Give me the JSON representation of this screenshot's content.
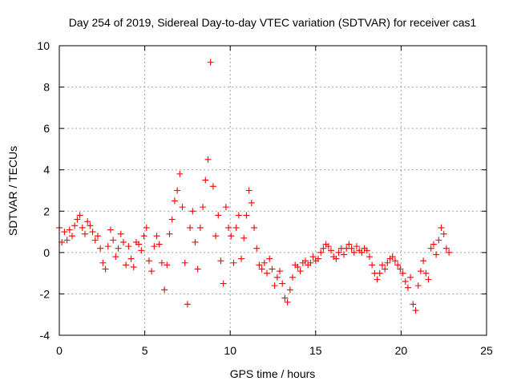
{
  "colors": {
    "marker": "#ff0000",
    "grid": "#a0a0a0",
    "axis": "#000000",
    "background": "#ffffff"
  },
  "chart_data": {
    "type": "scatter",
    "title": "Day 254 of 2019, Sidereal Day-to-day VTEC variation (SDTVAR) for receiver cas1",
    "xlabel": "GPS time / hours",
    "ylabel": "SDTVAR / TECUs",
    "xlim": [
      0,
      25
    ],
    "ylim": [
      -4,
      10
    ],
    "xticks": [
      0,
      5,
      10,
      15,
      20,
      25
    ],
    "xtick_labels": [
      "0",
      "5",
      "10",
      "15",
      "20",
      "25"
    ],
    "yticks": [
      -4,
      -2,
      0,
      2,
      4,
      6,
      8,
      10
    ],
    "ytick_labels": [
      "-4",
      "-2",
      "0",
      "2",
      "4",
      "6",
      "8",
      "10"
    ],
    "grid": true,
    "marker": "+",
    "series": [
      {
        "name": "cas1",
        "x": [
          0.0,
          0.15,
          0.3,
          0.45,
          0.6,
          0.75,
          0.9,
          1.05,
          1.2,
          1.35,
          1.5,
          1.65,
          1.8,
          1.95,
          2.1,
          2.25,
          2.4,
          2.55,
          2.7,
          2.85,
          3.0,
          3.15,
          3.3,
          3.45,
          3.6,
          3.75,
          3.9,
          4.05,
          4.2,
          4.35,
          4.5,
          4.65,
          4.8,
          4.95,
          5.1,
          5.25,
          5.4,
          5.55,
          5.7,
          5.85,
          6.0,
          6.15,
          6.3,
          6.45,
          6.6,
          6.75,
          6.9,
          7.05,
          7.2,
          7.35,
          7.5,
          7.65,
          7.8,
          7.95,
          8.1,
          8.25,
          8.4,
          8.55,
          8.7,
          8.85,
          9.0,
          9.15,
          9.3,
          9.45,
          9.6,
          9.75,
          9.9,
          10.05,
          10.2,
          10.35,
          10.5,
          10.65,
          10.8,
          10.95,
          11.1,
          11.25,
          11.4,
          11.55,
          11.7,
          11.85,
          12.0,
          12.15,
          12.3,
          12.45,
          12.6,
          12.75,
          12.9,
          13.05,
          13.2,
          13.35,
          13.5,
          13.65,
          13.8,
          13.95,
          14.1,
          14.25,
          14.4,
          14.55,
          14.7,
          14.85,
          15.0,
          15.15,
          15.3,
          15.45,
          15.6,
          15.75,
          15.9,
          16.05,
          16.2,
          16.35,
          16.5,
          16.65,
          16.8,
          16.95,
          17.1,
          17.25,
          17.4,
          17.55,
          17.7,
          17.85,
          18.0,
          18.15,
          18.3,
          18.45,
          18.6,
          18.75,
          18.9,
          19.05,
          19.2,
          19.35,
          19.5,
          19.65,
          19.8,
          19.95,
          20.1,
          20.25,
          20.4,
          20.55,
          20.7,
          20.85,
          21.0,
          21.15,
          21.3,
          21.45,
          21.6,
          21.75,
          21.9,
          22.05,
          22.2,
          22.35,
          22.5,
          22.65,
          22.8
        ],
        "y": [
          1.2,
          0.5,
          1.0,
          0.6,
          1.1,
          0.8,
          1.3,
          1.6,
          1.8,
          1.2,
          0.9,
          1.5,
          1.3,
          1.0,
          0.6,
          0.8,
          0.2,
          -0.5,
          -0.8,
          0.3,
          1.1,
          0.6,
          -0.2,
          0.2,
          0.9,
          0.5,
          -0.6,
          0.3,
          -0.3,
          -0.7,
          0.5,
          0.4,
          0.1,
          0.8,
          1.2,
          -0.4,
          -0.9,
          0.3,
          0.8,
          0.4,
          -0.5,
          -1.8,
          -0.6,
          0.9,
          1.6,
          2.5,
          3.0,
          3.8,
          2.2,
          -0.5,
          -2.5,
          1.2,
          2.0,
          0.5,
          -0.8,
          1.2,
          2.2,
          3.5,
          4.5,
          9.2,
          3.2,
          0.8,
          1.8,
          -0.4,
          -1.5,
          2.2,
          1.2,
          0.8,
          -0.5,
          1.2,
          1.8,
          -0.3,
          0.7,
          1.8,
          3.0,
          2.4,
          1.2,
          0.2,
          -0.6,
          -0.8,
          -0.5,
          -1.0,
          -0.3,
          -0.8,
          -1.6,
          -1.2,
          -0.9,
          -1.5,
          -2.2,
          -2.4,
          -1.8,
          -1.2,
          -0.6,
          -0.7,
          -0.9,
          -0.5,
          -0.4,
          -0.6,
          -0.5,
          -0.2,
          -0.4,
          -0.3,
          0.0,
          0.2,
          0.4,
          0.3,
          0.1,
          -0.2,
          -0.3,
          0.0,
          0.2,
          -0.1,
          0.2,
          0.4,
          0.2,
          0.0,
          0.3,
          0.1,
          0.0,
          0.2,
          0.1,
          -0.2,
          -0.6,
          -1.0,
          -1.3,
          -1.0,
          -0.6,
          -0.8,
          -0.5,
          -0.3,
          -0.2,
          -0.4,
          -0.6,
          -0.8,
          -1.0,
          -1.4,
          -1.7,
          -1.2,
          -2.5,
          -2.8,
          -1.6,
          -0.9,
          -0.4,
          -1.0,
          -1.3,
          0.2,
          0.4,
          -0.1,
          0.6,
          1.2,
          0.9,
          0.2,
          0.0
        ]
      }
    ]
  }
}
